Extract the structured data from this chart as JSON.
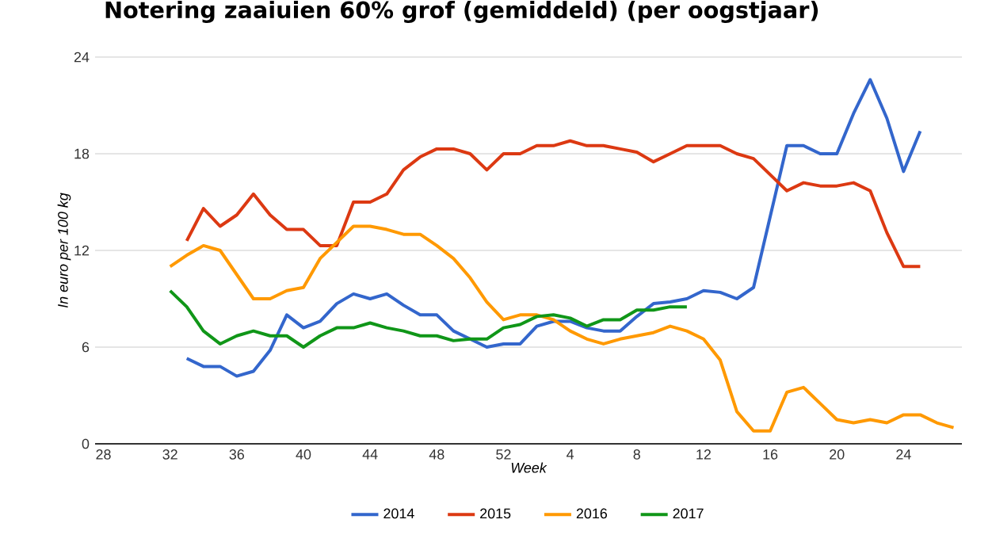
{
  "chart_data": {
    "type": "line",
    "title": "Notering zaaiuien 60% grof (gemiddeld) (per oogstjaar)",
    "xlabel": "Week",
    "ylabel": "In euro per 100 kg",
    "categories": [
      "28",
      null,
      null,
      null,
      "32",
      null,
      null,
      null,
      "36",
      null,
      null,
      null,
      "40",
      null,
      null,
      null,
      "44",
      null,
      null,
      null,
      "48",
      null,
      null,
      null,
      "52",
      null,
      null,
      null,
      "4",
      null,
      null,
      null,
      "8",
      null,
      null,
      null,
      "12",
      null,
      null,
      null,
      "16",
      null,
      null,
      null,
      "20",
      null,
      null,
      null,
      "24",
      null,
      null,
      null
    ],
    "ylim": [
      0,
      24
    ],
    "yticks": [
      0,
      6,
      12,
      18,
      24
    ],
    "grid": "y",
    "legend": "bottom",
    "series": [
      {
        "name": "2014",
        "color": "#3366cc",
        "values": [
          null,
          null,
          null,
          null,
          null,
          5.3,
          4.8,
          4.8,
          4.2,
          4.5,
          5.8,
          8.0,
          7.2,
          7.6,
          8.7,
          9.3,
          9.0,
          9.3,
          8.6,
          8.0,
          8.0,
          7.0,
          6.5,
          6.0,
          6.2,
          6.2,
          7.3,
          7.6,
          7.6,
          7.2,
          7.0,
          7.0,
          7.9,
          8.7,
          8.8,
          9.0,
          9.5,
          9.4,
          9.0,
          9.7,
          14.1,
          18.5,
          18.5,
          18.0,
          18.0,
          20.5,
          22.6,
          20.2,
          16.9,
          19.4,
          null,
          null
        ]
      },
      {
        "name": "2015",
        "color": "#dc3912",
        "values": [
          null,
          null,
          null,
          null,
          null,
          12.6,
          14.6,
          13.5,
          14.2,
          15.5,
          14.2,
          13.3,
          13.3,
          12.3,
          12.3,
          15.0,
          15.0,
          15.5,
          17.0,
          17.8,
          18.3,
          18.3,
          18.0,
          17.0,
          18.0,
          18.0,
          18.5,
          18.5,
          18.8,
          18.5,
          18.5,
          18.3,
          18.1,
          17.5,
          18.0,
          18.5,
          18.5,
          18.5,
          18.0,
          17.7,
          16.7,
          15.7,
          16.2,
          16.0,
          16.0,
          16.2,
          15.7,
          13.1,
          11.0,
          11.0,
          null,
          null
        ]
      },
      {
        "name": "2016",
        "color": "#ff9900",
        "values": [
          null,
          null,
          null,
          null,
          11.0,
          11.7,
          12.3,
          12.0,
          10.5,
          9.0,
          9.0,
          9.5,
          9.7,
          11.5,
          12.5,
          13.5,
          13.5,
          13.3,
          13.0,
          13.0,
          12.3,
          11.5,
          10.3,
          8.8,
          7.7,
          8.0,
          8.0,
          7.7,
          7.0,
          6.5,
          6.2,
          6.5,
          6.7,
          6.9,
          7.3,
          7.0,
          6.5,
          5.2,
          2.0,
          0.8,
          0.8,
          3.2,
          3.5,
          2.5,
          1.5,
          1.3,
          1.5,
          1.3,
          1.8,
          1.8,
          1.3,
          1.0
        ]
      },
      {
        "name": "2017",
        "color": "#109618",
        "values": [
          null,
          null,
          null,
          null,
          9.5,
          8.5,
          7.0,
          6.2,
          6.7,
          7.0,
          6.7,
          6.7,
          6.0,
          6.7,
          7.2,
          7.2,
          7.5,
          7.2,
          7.0,
          6.7,
          6.7,
          6.4,
          6.5,
          6.5,
          7.2,
          7.4,
          7.9,
          8.0,
          7.8,
          7.3,
          7.7,
          7.7,
          8.3,
          8.3,
          8.5,
          8.5,
          null,
          null,
          null,
          null,
          null,
          null,
          null,
          null,
          null,
          null,
          null,
          null,
          null,
          null,
          null,
          null
        ]
      }
    ]
  }
}
